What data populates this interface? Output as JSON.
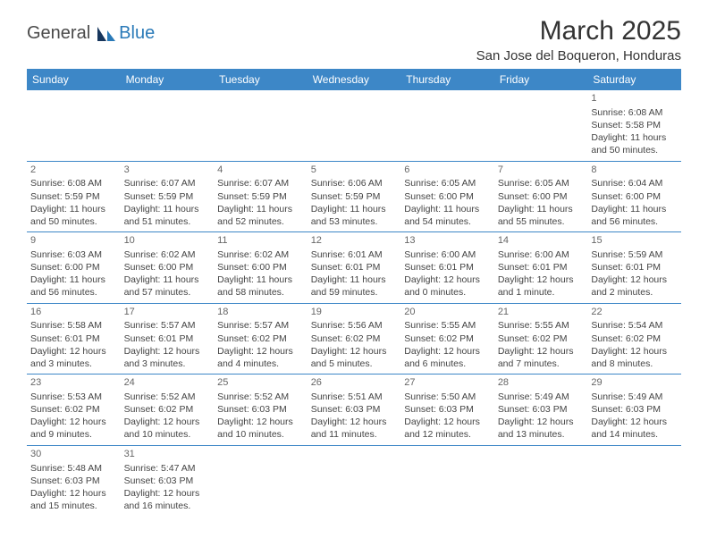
{
  "logo": {
    "text1": "General",
    "text2": "Blue"
  },
  "title": "March 2025",
  "location": "San Jose del Boqueron, Honduras",
  "colors": {
    "header_bg": "#3d87c7",
    "header_fg": "#ffffff",
    "border": "#3d87c7",
    "text": "#444444",
    "logo_gray": "#4a4a4a",
    "logo_blue": "#2a7ab8"
  },
  "weekdays": [
    "Sunday",
    "Monday",
    "Tuesday",
    "Wednesday",
    "Thursday",
    "Friday",
    "Saturday"
  ],
  "weeks": [
    [
      null,
      null,
      null,
      null,
      null,
      null,
      {
        "n": "1",
        "sr": "Sunrise: 6:08 AM",
        "ss": "Sunset: 5:58 PM",
        "dl": "Daylight: 11 hours and 50 minutes."
      }
    ],
    [
      {
        "n": "2",
        "sr": "Sunrise: 6:08 AM",
        "ss": "Sunset: 5:59 PM",
        "dl": "Daylight: 11 hours and 50 minutes."
      },
      {
        "n": "3",
        "sr": "Sunrise: 6:07 AM",
        "ss": "Sunset: 5:59 PM",
        "dl": "Daylight: 11 hours and 51 minutes."
      },
      {
        "n": "4",
        "sr": "Sunrise: 6:07 AM",
        "ss": "Sunset: 5:59 PM",
        "dl": "Daylight: 11 hours and 52 minutes."
      },
      {
        "n": "5",
        "sr": "Sunrise: 6:06 AM",
        "ss": "Sunset: 5:59 PM",
        "dl": "Daylight: 11 hours and 53 minutes."
      },
      {
        "n": "6",
        "sr": "Sunrise: 6:05 AM",
        "ss": "Sunset: 6:00 PM",
        "dl": "Daylight: 11 hours and 54 minutes."
      },
      {
        "n": "7",
        "sr": "Sunrise: 6:05 AM",
        "ss": "Sunset: 6:00 PM",
        "dl": "Daylight: 11 hours and 55 minutes."
      },
      {
        "n": "8",
        "sr": "Sunrise: 6:04 AM",
        "ss": "Sunset: 6:00 PM",
        "dl": "Daylight: 11 hours and 56 minutes."
      }
    ],
    [
      {
        "n": "9",
        "sr": "Sunrise: 6:03 AM",
        "ss": "Sunset: 6:00 PM",
        "dl": "Daylight: 11 hours and 56 minutes."
      },
      {
        "n": "10",
        "sr": "Sunrise: 6:02 AM",
        "ss": "Sunset: 6:00 PM",
        "dl": "Daylight: 11 hours and 57 minutes."
      },
      {
        "n": "11",
        "sr": "Sunrise: 6:02 AM",
        "ss": "Sunset: 6:00 PM",
        "dl": "Daylight: 11 hours and 58 minutes."
      },
      {
        "n": "12",
        "sr": "Sunrise: 6:01 AM",
        "ss": "Sunset: 6:01 PM",
        "dl": "Daylight: 11 hours and 59 minutes."
      },
      {
        "n": "13",
        "sr": "Sunrise: 6:00 AM",
        "ss": "Sunset: 6:01 PM",
        "dl": "Daylight: 12 hours and 0 minutes."
      },
      {
        "n": "14",
        "sr": "Sunrise: 6:00 AM",
        "ss": "Sunset: 6:01 PM",
        "dl": "Daylight: 12 hours and 1 minute."
      },
      {
        "n": "15",
        "sr": "Sunrise: 5:59 AM",
        "ss": "Sunset: 6:01 PM",
        "dl": "Daylight: 12 hours and 2 minutes."
      }
    ],
    [
      {
        "n": "16",
        "sr": "Sunrise: 5:58 AM",
        "ss": "Sunset: 6:01 PM",
        "dl": "Daylight: 12 hours and 3 minutes."
      },
      {
        "n": "17",
        "sr": "Sunrise: 5:57 AM",
        "ss": "Sunset: 6:01 PM",
        "dl": "Daylight: 12 hours and 3 minutes."
      },
      {
        "n": "18",
        "sr": "Sunrise: 5:57 AM",
        "ss": "Sunset: 6:02 PM",
        "dl": "Daylight: 12 hours and 4 minutes."
      },
      {
        "n": "19",
        "sr": "Sunrise: 5:56 AM",
        "ss": "Sunset: 6:02 PM",
        "dl": "Daylight: 12 hours and 5 minutes."
      },
      {
        "n": "20",
        "sr": "Sunrise: 5:55 AM",
        "ss": "Sunset: 6:02 PM",
        "dl": "Daylight: 12 hours and 6 minutes."
      },
      {
        "n": "21",
        "sr": "Sunrise: 5:55 AM",
        "ss": "Sunset: 6:02 PM",
        "dl": "Daylight: 12 hours and 7 minutes."
      },
      {
        "n": "22",
        "sr": "Sunrise: 5:54 AM",
        "ss": "Sunset: 6:02 PM",
        "dl": "Daylight: 12 hours and 8 minutes."
      }
    ],
    [
      {
        "n": "23",
        "sr": "Sunrise: 5:53 AM",
        "ss": "Sunset: 6:02 PM",
        "dl": "Daylight: 12 hours and 9 minutes."
      },
      {
        "n": "24",
        "sr": "Sunrise: 5:52 AM",
        "ss": "Sunset: 6:02 PM",
        "dl": "Daylight: 12 hours and 10 minutes."
      },
      {
        "n": "25",
        "sr": "Sunrise: 5:52 AM",
        "ss": "Sunset: 6:03 PM",
        "dl": "Daylight: 12 hours and 10 minutes."
      },
      {
        "n": "26",
        "sr": "Sunrise: 5:51 AM",
        "ss": "Sunset: 6:03 PM",
        "dl": "Daylight: 12 hours and 11 minutes."
      },
      {
        "n": "27",
        "sr": "Sunrise: 5:50 AM",
        "ss": "Sunset: 6:03 PM",
        "dl": "Daylight: 12 hours and 12 minutes."
      },
      {
        "n": "28",
        "sr": "Sunrise: 5:49 AM",
        "ss": "Sunset: 6:03 PM",
        "dl": "Daylight: 12 hours and 13 minutes."
      },
      {
        "n": "29",
        "sr": "Sunrise: 5:49 AM",
        "ss": "Sunset: 6:03 PM",
        "dl": "Daylight: 12 hours and 14 minutes."
      }
    ],
    [
      {
        "n": "30",
        "sr": "Sunrise: 5:48 AM",
        "ss": "Sunset: 6:03 PM",
        "dl": "Daylight: 12 hours and 15 minutes."
      },
      {
        "n": "31",
        "sr": "Sunrise: 5:47 AM",
        "ss": "Sunset: 6:03 PM",
        "dl": "Daylight: 12 hours and 16 minutes."
      },
      null,
      null,
      null,
      null,
      null
    ]
  ]
}
